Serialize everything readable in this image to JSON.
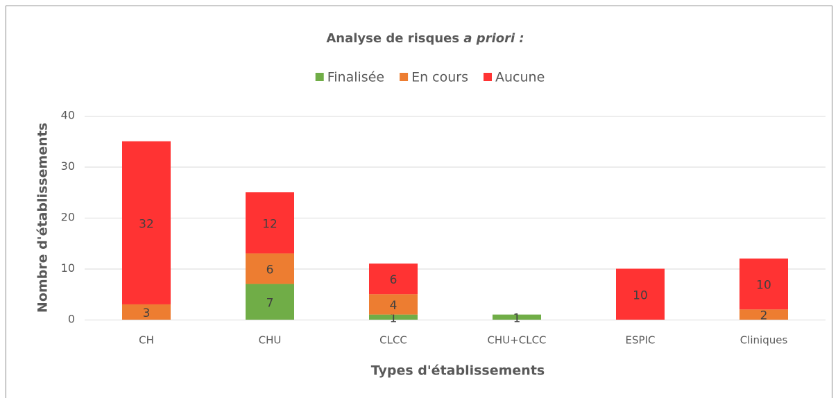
{
  "chart_data": {
    "type": "stacked_bar",
    "title": [
      "Analyse de risques",
      "a priori :"
    ],
    "x_label": "Types d'établissements",
    "y_label": "Nombre d'établissements",
    "categories": [
      "CH",
      "CHU",
      "CLCC",
      "CHU+CLCC",
      "ESPIC",
      "Cliniques"
    ],
    "series": [
      {
        "name": "Finalisée",
        "color": "#70ad47",
        "values": [
          0,
          7,
          1,
          1,
          0,
          0
        ]
      },
      {
        "name": "En cours",
        "color": "#ed7d31",
        "values": [
          3,
          6,
          4,
          0,
          0,
          2
        ]
      },
      {
        "name": "Aucune",
        "color": "#ff3333",
        "values": [
          32,
          12,
          6,
          0,
          10,
          10
        ]
      }
    ],
    "ylim": [
      0,
      40
    ],
    "yticks": [
      0,
      10,
      20,
      30,
      40
    ],
    "grid": true,
    "legend": "top"
  }
}
